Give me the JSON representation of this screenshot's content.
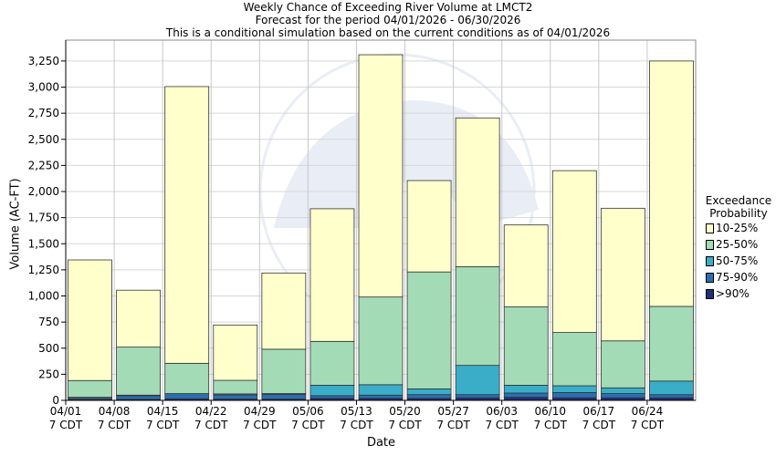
{
  "chart_data": {
    "type": "bar",
    "stacked": true,
    "title": "Weekly Chance of Exceeding River Volume at LMCT2",
    "subtitle": "Forecast for the period 04/01/2026 - 06/30/2026",
    "subtitle2": "This is a conditional simulation based on the current conditions as of 04/01/2026",
    "xlabel": "Date",
    "ylabel": "Volume (AC-FT)",
    "ylim": [
      0,
      3450
    ],
    "yticks": [
      "0",
      "250",
      "500",
      "750",
      "1,000",
      "1,250",
      "1,500",
      "1,750",
      "2,000",
      "2,250",
      "2,500",
      "2,750",
      "3,000",
      "3,250"
    ],
    "ytick_values": [
      0,
      250,
      500,
      750,
      1000,
      1250,
      1500,
      1750,
      2000,
      2250,
      2500,
      2750,
      3000,
      3250
    ],
    "categories": [
      "04/01",
      "04/08",
      "04/15",
      "04/22",
      "04/29",
      "05/06",
      "05/13",
      "05/20",
      "05/27",
      "06/03",
      "06/10",
      "06/17",
      "06/24"
    ],
    "category_sub": "7 CDT",
    "legend_title": [
      "Exceedance",
      "Probability"
    ],
    "series": [
      {
        "name": ">90%",
        "color": "#1f2f7a",
        "values": [
          8,
          10,
          15,
          12,
          12,
          20,
          20,
          20,
          25,
          30,
          25,
          25,
          25
        ]
      },
      {
        "name": "75-90%",
        "color": "#2a6fb0",
        "values": [
          12,
          35,
          50,
          40,
          45,
          25,
          30,
          35,
          30,
          40,
          50,
          40,
          30
        ]
      },
      {
        "name": "50-75%",
        "color": "#3aaec8",
        "values": [
          10,
          5,
          0,
          10,
          8,
          100,
          100,
          55,
          280,
          75,
          65,
          55,
          130
        ]
      },
      {
        "name": "25-50%",
        "color": "#a3dbb6",
        "values": [
          160,
          460,
          290,
          130,
          425,
          420,
          840,
          1120,
          945,
          750,
          510,
          450,
          715
        ]
      },
      {
        "name": "10-25%",
        "color": "#ffffcc",
        "values": [
          1155,
          545,
          2650,
          530,
          730,
          1270,
          2320,
          875,
          1425,
          785,
          1550,
          1270,
          2350
        ]
      }
    ]
  }
}
